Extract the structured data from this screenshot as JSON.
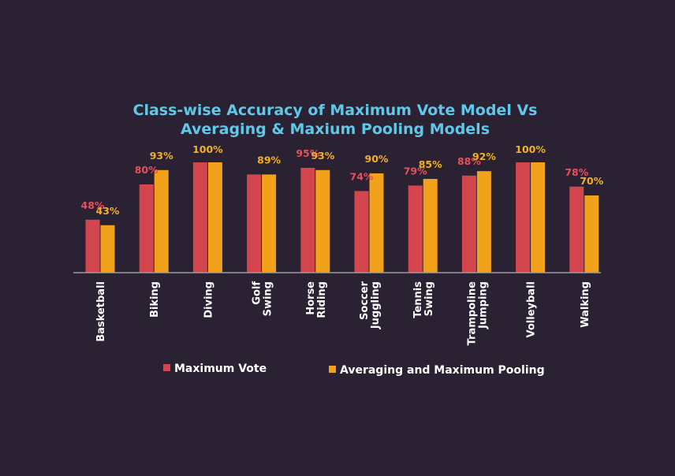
{
  "chart_data": {
    "type": "bar",
    "title_lines": [
      "Class-wise Accuracy of Maximum Vote Model Vs",
      "Averaging & Maxium Pooling Models"
    ],
    "categories": [
      [
        "Basketball"
      ],
      [
        "Biking"
      ],
      [
        "Diving"
      ],
      [
        "Golf",
        "Swing"
      ],
      [
        "Horse",
        "Riding"
      ],
      [
        "Soccer",
        "Juggling"
      ],
      [
        "Tennis",
        "Swing"
      ],
      [
        "Trampoline",
        "Jumping"
      ],
      [
        "Volleyball"
      ],
      [
        "Walking"
      ]
    ],
    "series": [
      {
        "name": "Maximum Vote",
        "color": "#d4464e",
        "label_color": "#e8505a",
        "values": [
          48,
          80,
          100,
          89,
          95,
          74,
          79,
          88,
          100,
          78
        ],
        "labels": [
          "48%",
          "80%",
          "",
          "",
          "95%",
          "74%",
          "79%",
          "88%",
          "",
          "78%"
        ]
      },
      {
        "name": "Averaging and Maximum Pooling",
        "color": "#f2a21a",
        "label_color": "#f4b025",
        "values": [
          43,
          93,
          100,
          89,
          93,
          90,
          85,
          92,
          100,
          70
        ],
        "labels": [
          "43%",
          "93%",
          "",
          "89%",
          "93%",
          "90%",
          "85%",
          "92%",
          "",
          "70%"
        ]
      }
    ],
    "shared_labels": [
      "",
      "",
      "100%",
      "",
      "",
      "",
      "",
      "",
      "100%",
      ""
    ],
    "ylim": [
      0,
      100
    ],
    "grid": false,
    "legend_position": "bottom",
    "axis_color": "#9a9aa2"
  }
}
